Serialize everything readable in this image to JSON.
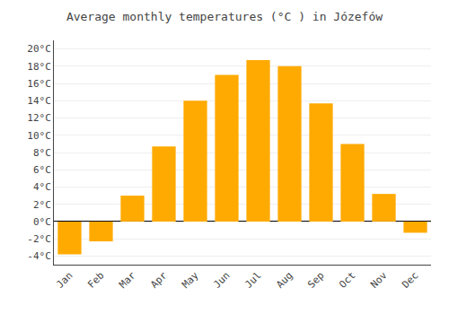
{
  "chart_data": {
    "type": "bar",
    "title": "Average monthly temperatures (°C ) in Józefów",
    "categories": [
      "Jan",
      "Feb",
      "Mar",
      "Apr",
      "May",
      "Jun",
      "Jul",
      "Aug",
      "Sep",
      "Oct",
      "Nov",
      "Dec"
    ],
    "values": [
      -3.8,
      -2.3,
      3.0,
      8.7,
      14.0,
      17.0,
      18.7,
      18.0,
      13.7,
      9.0,
      3.2,
      -1.3
    ],
    "color": "#FFAA00",
    "ylim": [
      -5,
      21
    ],
    "yticks": [
      {
        "value": -4,
        "label": "-4°C"
      },
      {
        "value": -2,
        "label": "-2°C"
      },
      {
        "value": 0,
        "label": "0°C"
      },
      {
        "value": 2,
        "label": "2°C"
      },
      {
        "value": 4,
        "label": "4°C"
      },
      {
        "value": 6,
        "label": "6°C"
      },
      {
        "value": 8,
        "label": "8°C"
      },
      {
        "value": 10,
        "label": "10°C"
      },
      {
        "value": 12,
        "label": "12°C"
      },
      {
        "value": 14,
        "label": "14°C"
      },
      {
        "value": 16,
        "label": "16°C"
      },
      {
        "value": 18,
        "label": "18°C"
      },
      {
        "value": 20,
        "label": "20°C"
      }
    ],
    "grid": true
  }
}
